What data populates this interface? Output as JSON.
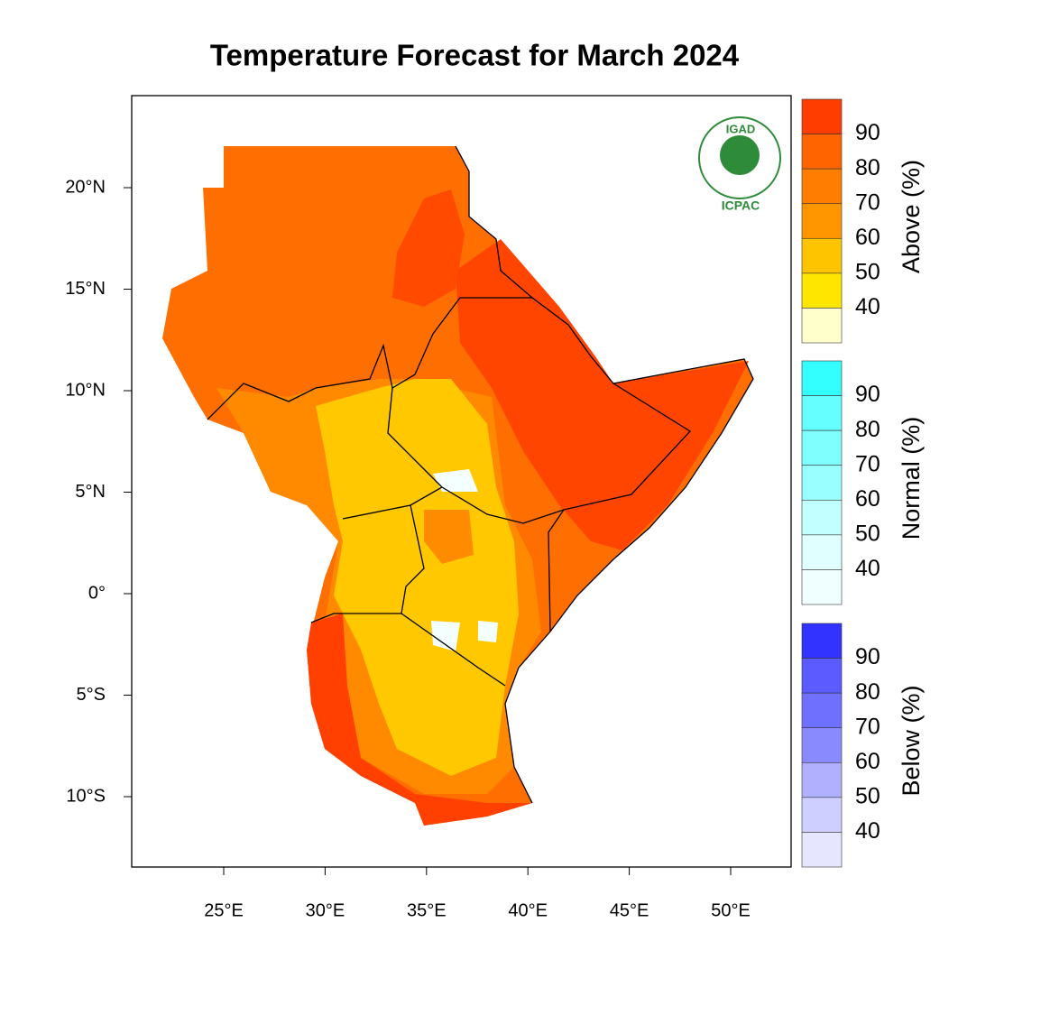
{
  "title": "Temperature Forecast for March 2024",
  "map": {
    "lon_ticks": [
      "25°E",
      "30°E",
      "35°E",
      "40°E",
      "45°E",
      "50°E"
    ],
    "lat_ticks": [
      "20°N",
      "15°N",
      "10°N",
      "5°N",
      "0°",
      "5°S",
      "10°S"
    ]
  },
  "logo": {
    "top": "IGAD",
    "bottom": "ICPAC"
  },
  "legend": [
    {
      "title": "Above (%)",
      "labels": [
        "90",
        "80",
        "70",
        "60",
        "50",
        "40"
      ],
      "colors": [
        "#ff3d00",
        "#ff6400",
        "#ff7d00",
        "#ff9600",
        "#ffc400",
        "#ffe600",
        "#ffffcc"
      ]
    },
    {
      "title": "Normal (%)",
      "labels": [
        "90",
        "80",
        "70",
        "60",
        "50",
        "40"
      ],
      "colors": [
        "#33ffff",
        "#66ffff",
        "#80ffff",
        "#99ffff",
        "#c2ffff",
        "#e0ffff",
        "#f0ffff"
      ]
    },
    {
      "title": "Below (%)",
      "labels": [
        "90",
        "80",
        "70",
        "60",
        "50",
        "40"
      ],
      "colors": [
        "#3333ff",
        "#5b5bff",
        "#7070ff",
        "#8a8aff",
        "#b0b0ff",
        "#cfcfff",
        "#e6e6ff"
      ]
    }
  ]
}
